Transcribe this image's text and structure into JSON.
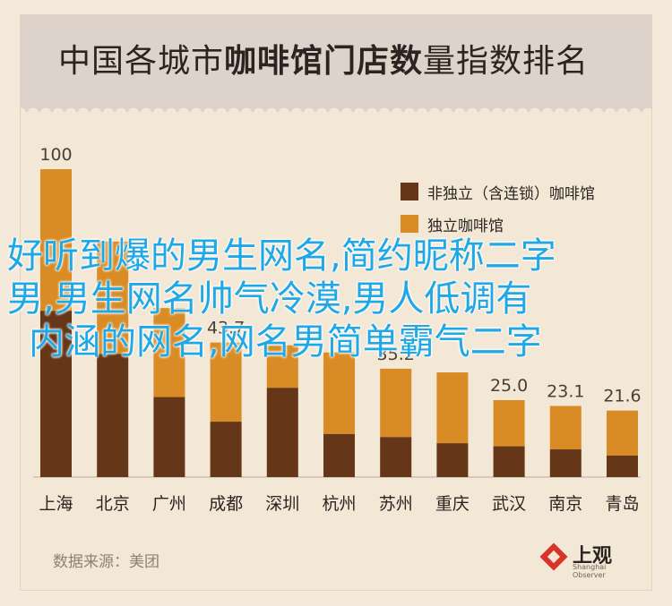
{
  "title": {
    "part1": "中国各城市",
    "part2": "咖啡馆门店数",
    "part3": "量",
    "part4": "指数排名"
  },
  "colors": {
    "non_indep": "#653617",
    "indep": "#d98c26",
    "background": "#f3e7d6",
    "header": "#ddd3cb",
    "overlay_text": "#1ea9e6"
  },
  "chart_data": {
    "type": "bar",
    "stacked": true,
    "categories": [
      "上海",
      "北京",
      "广州",
      "成都",
      "深圳",
      "杭州",
      "苏州",
      "重庆",
      "武汉",
      "南京",
      "青岛"
    ],
    "totals": [
      100,
      76.5,
      54.9,
      43.7,
      42.8,
      40.5,
      35.2,
      34.0,
      25.0,
      23.1,
      21.6
    ],
    "total_labels": [
      "100",
      "",
      "",
      "43.7",
      "",
      "",
      "35.2",
      "",
      "25.0",
      "23.1",
      "21.6"
    ],
    "series": [
      {
        "name": "非独立（含连锁）咖啡馆",
        "values": [
          54,
          40,
          26,
          18,
          29,
          14,
          13,
          11,
          10,
          9,
          7
        ]
      },
      {
        "name": "独立咖啡馆",
        "values": [
          46,
          36.5,
          28.9,
          25.7,
          13.8,
          26.5,
          22.2,
          23.0,
          15.0,
          14.1,
          14.6
        ]
      }
    ],
    "ylim": [
      0,
      100
    ],
    "grid": false,
    "legend_position": "top-right"
  },
  "source": "数据来源：美团",
  "logo": {
    "name": "上观",
    "sub": "Shanghai Observer"
  },
  "overlay": {
    "line1": "好听到爆的男生网名,简约昵称二字",
    "line2": "男,男生网名帅气冷漠,男人低调有",
    "line3": "内涵的网名,网名男简单霸气二字"
  }
}
